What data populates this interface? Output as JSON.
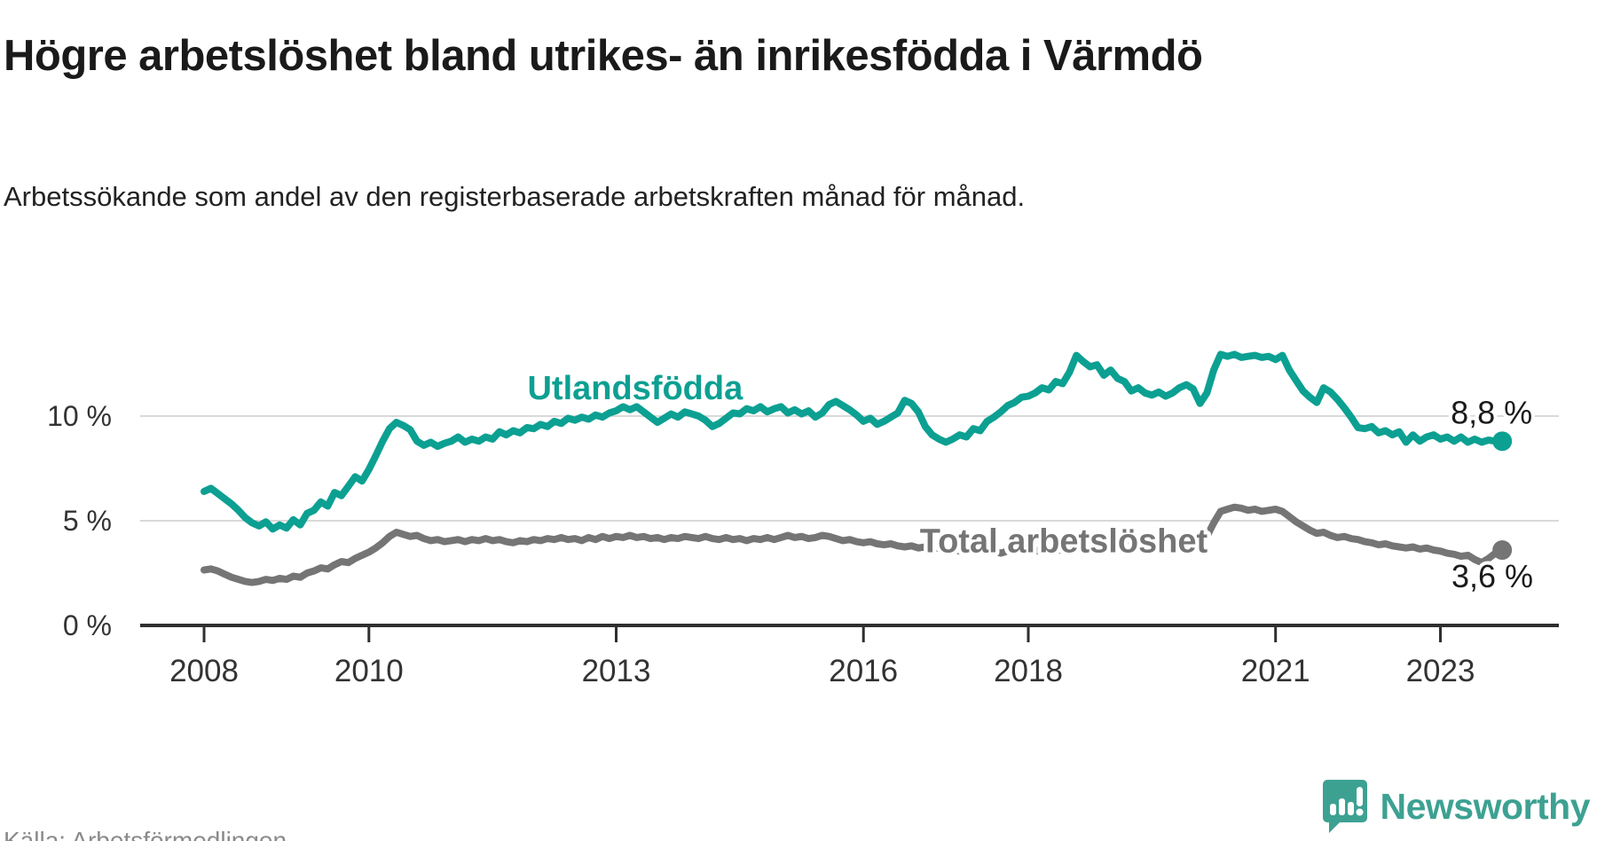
{
  "header": {
    "title": "Högre arbetslöshet bland utrikes- än inrikesfödda i Värmdö",
    "subtitle": "Arbetssökande som andel av den registerbaserade arbetskraften månad för månad."
  },
  "footer": {
    "source": "Källa: Arbetsförmedlingen",
    "logo_text": "Newsworthy",
    "logo_icon": "newsworthy-speech-bubble-chart-icon",
    "logo_color": "#3da192"
  },
  "colors": {
    "series_foreign": "#0ca092",
    "series_total": "#757575",
    "axis": "#2f2f2f",
    "gridline": "#d9d9d9",
    "tick_label": "#333333",
    "end_label": "#1a1a1a",
    "halo": "#ffffff"
  },
  "chart_data": {
    "type": "line",
    "title": "Högre arbetslöshet bland utrikes- än inrikesfödda i Värmdö",
    "subtitle": "Arbetssökande som andel av den registerbaserade arbetskraften månad för månad.",
    "x_start_year": 2008.0,
    "x_step_years": 0.08333,
    "xlim": [
      2008.0,
      2023.75
    ],
    "ylim": [
      0,
      13.8
    ],
    "grid": "horizontal-only",
    "legend_position": "inline-labels",
    "y_ticks": [
      {
        "label": "0 %",
        "value": 0
      },
      {
        "label": "5 %",
        "value": 5
      },
      {
        "label": "10 %",
        "value": 10
      }
    ],
    "x_ticks": [
      {
        "label": "2008",
        "year": 2008
      },
      {
        "label": "2010",
        "year": 2010
      },
      {
        "label": "2013",
        "year": 2013
      },
      {
        "label": "2016",
        "year": 2016
      },
      {
        "label": "2018",
        "year": 2018
      },
      {
        "label": "2021",
        "year": 2021
      },
      {
        "label": "2023",
        "year": 2023
      }
    ],
    "series": [
      {
        "name": "Utlandsfödda",
        "color": "#0ca092",
        "end_label": "8,8 %",
        "end_value": 8.8,
        "label_anchor": {
          "year": 2013.23,
          "value": 11.35
        },
        "end_label_anchor": {
          "year": 2023.62,
          "value": 10.15
        },
        "values": [
          6.4,
          6.55,
          6.3,
          6.05,
          5.8,
          5.5,
          5.15,
          4.9,
          4.75,
          4.95,
          4.6,
          4.8,
          4.65,
          5.05,
          4.8,
          5.35,
          5.5,
          5.9,
          5.7,
          6.35,
          6.2,
          6.65,
          7.1,
          6.9,
          7.45,
          8.1,
          8.8,
          9.4,
          9.7,
          9.55,
          9.35,
          8.8,
          8.6,
          8.75,
          8.55,
          8.7,
          8.8,
          9.0,
          8.75,
          8.9,
          8.8,
          9.0,
          8.9,
          9.25,
          9.1,
          9.3,
          9.2,
          9.45,
          9.4,
          9.6,
          9.5,
          9.75,
          9.65,
          9.9,
          9.8,
          9.95,
          9.85,
          10.05,
          9.95,
          10.15,
          10.25,
          10.45,
          10.3,
          10.45,
          10.2,
          9.95,
          9.7,
          9.9,
          10.1,
          9.95,
          10.2,
          10.1,
          10.0,
          9.8,
          9.5,
          9.65,
          9.9,
          10.15,
          10.1,
          10.35,
          10.25,
          10.45,
          10.2,
          10.35,
          10.45,
          10.15,
          10.3,
          10.1,
          10.25,
          9.95,
          10.15,
          10.55,
          10.7,
          10.5,
          10.3,
          10.05,
          9.75,
          9.9,
          9.6,
          9.75,
          9.95,
          10.15,
          10.75,
          10.6,
          10.2,
          9.5,
          9.1,
          8.9,
          8.75,
          8.9,
          9.1,
          9.0,
          9.4,
          9.3,
          9.75,
          9.95,
          10.2,
          10.5,
          10.65,
          10.9,
          10.95,
          11.1,
          11.35,
          11.25,
          11.65,
          11.55,
          12.1,
          12.9,
          12.6,
          12.35,
          12.45,
          11.95,
          12.2,
          11.8,
          11.65,
          11.2,
          11.35,
          11.1,
          11.0,
          11.15,
          10.95,
          11.1,
          11.35,
          11.5,
          11.3,
          10.6,
          11.1,
          12.2,
          12.95,
          12.85,
          12.95,
          12.8,
          12.85,
          12.9,
          12.8,
          12.85,
          12.7,
          12.9,
          12.2,
          11.7,
          11.2,
          10.9,
          10.65,
          11.35,
          11.15,
          10.8,
          10.4,
          9.95,
          9.45,
          9.4,
          9.5,
          9.2,
          9.3,
          9.1,
          9.25,
          8.75,
          9.1,
          8.8,
          9.0,
          9.1,
          8.9,
          9.0,
          8.8,
          9.0,
          8.75,
          8.9,
          8.75,
          8.85,
          8.8,
          8.8
        ]
      },
      {
        "name": "Total arbetslöshet",
        "color": "#757575",
        "end_label": "3,6 %",
        "end_value": 3.6,
        "label_anchor": {
          "year": 2018.43,
          "value": 4.05
        },
        "end_label_anchor": {
          "year": 2023.63,
          "value": 2.33
        },
        "values": [
          2.65,
          2.7,
          2.6,
          2.45,
          2.3,
          2.2,
          2.1,
          2.05,
          2.1,
          2.2,
          2.15,
          2.25,
          2.2,
          2.35,
          2.3,
          2.5,
          2.6,
          2.75,
          2.7,
          2.9,
          3.05,
          3.0,
          3.2,
          3.35,
          3.5,
          3.7,
          3.95,
          4.25,
          4.45,
          4.35,
          4.25,
          4.3,
          4.15,
          4.05,
          4.1,
          4.0,
          4.05,
          4.1,
          4.0,
          4.1,
          4.05,
          4.15,
          4.05,
          4.1,
          4.0,
          3.95,
          4.05,
          4.0,
          4.1,
          4.05,
          4.15,
          4.1,
          4.2,
          4.1,
          4.15,
          4.05,
          4.2,
          4.1,
          4.25,
          4.15,
          4.25,
          4.2,
          4.3,
          4.2,
          4.25,
          4.15,
          4.2,
          4.1,
          4.2,
          4.15,
          4.25,
          4.2,
          4.15,
          4.25,
          4.15,
          4.1,
          4.2,
          4.1,
          4.15,
          4.05,
          4.15,
          4.1,
          4.2,
          4.1,
          4.2,
          4.3,
          4.2,
          4.25,
          4.15,
          4.2,
          4.3,
          4.25,
          4.15,
          4.05,
          4.1,
          4.0,
          3.95,
          4.0,
          3.9,
          3.85,
          3.9,
          3.8,
          3.75,
          3.8,
          3.7,
          3.75,
          3.65,
          3.7,
          3.6,
          3.65,
          3.55,
          3.6,
          3.5,
          3.55,
          3.5,
          3.55,
          3.45,
          3.55,
          3.5,
          3.6,
          3.55,
          3.6,
          3.5,
          3.6,
          3.55,
          3.65,
          3.6,
          3.7,
          3.65,
          3.75,
          3.7,
          3.8,
          3.75,
          3.85,
          3.8,
          3.9,
          3.85,
          3.95,
          3.9,
          4.0,
          3.95,
          4.05,
          4.0,
          4.1,
          4.15,
          4.1,
          4.25,
          4.9,
          5.45,
          5.55,
          5.65,
          5.6,
          5.5,
          5.55,
          5.45,
          5.5,
          5.55,
          5.45,
          5.2,
          4.95,
          4.75,
          4.55,
          4.4,
          4.45,
          4.3,
          4.2,
          4.25,
          4.15,
          4.1,
          4.0,
          3.95,
          3.85,
          3.9,
          3.8,
          3.75,
          3.7,
          3.75,
          3.65,
          3.7,
          3.6,
          3.55,
          3.45,
          3.4,
          3.3,
          3.35,
          3.15,
          3.0,
          3.2,
          3.45,
          3.6
        ]
      }
    ]
  }
}
